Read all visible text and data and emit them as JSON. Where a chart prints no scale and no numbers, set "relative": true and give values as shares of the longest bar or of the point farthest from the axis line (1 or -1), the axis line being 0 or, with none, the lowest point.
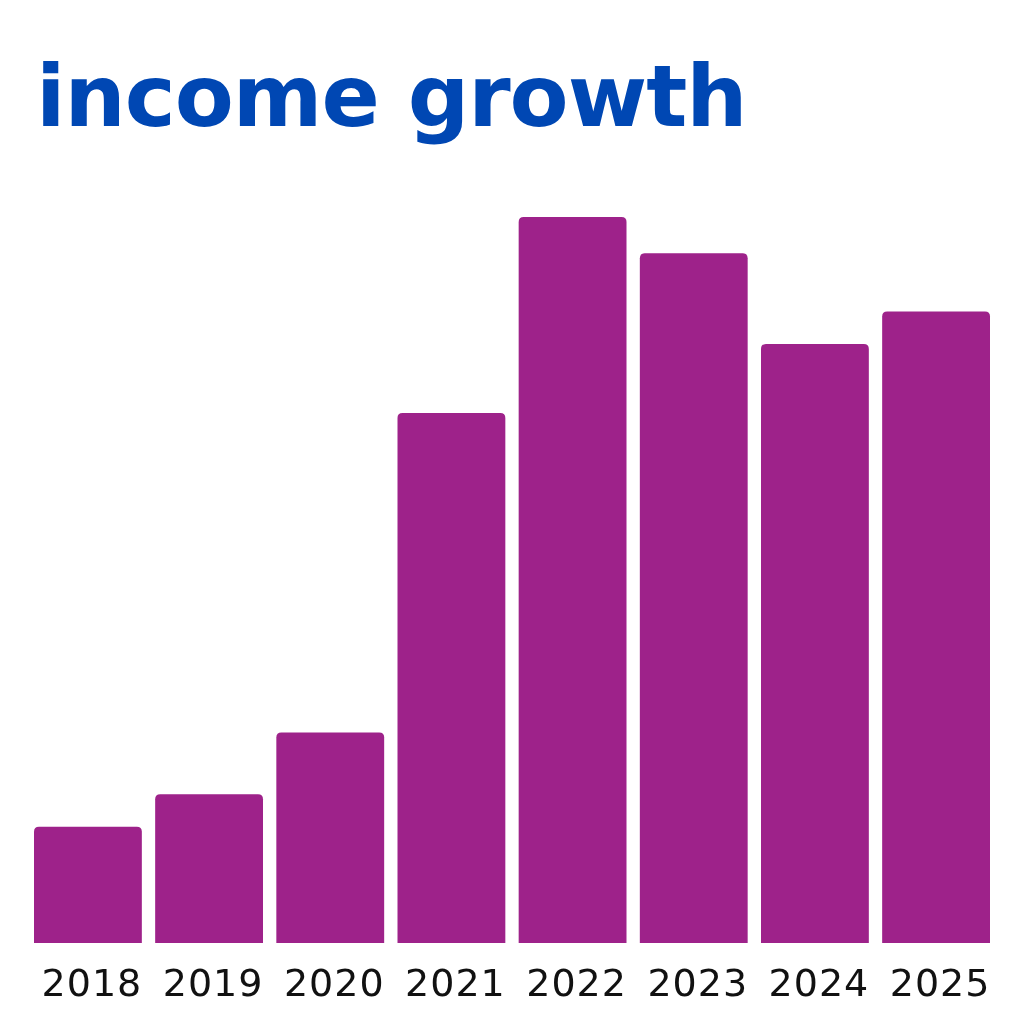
{
  "chart_data": {
    "type": "bar",
    "title": "income growth",
    "relative": true,
    "categories": [
      "2018",
      "2019",
      "2020",
      "2021",
      "2022",
      "2023",
      "2024",
      "2025"
    ],
    "values": [
      0.16,
      0.205,
      0.29,
      0.73,
      1,
      0.95,
      0.825,
      0.87
    ],
    "color": "#9e228a"
  }
}
